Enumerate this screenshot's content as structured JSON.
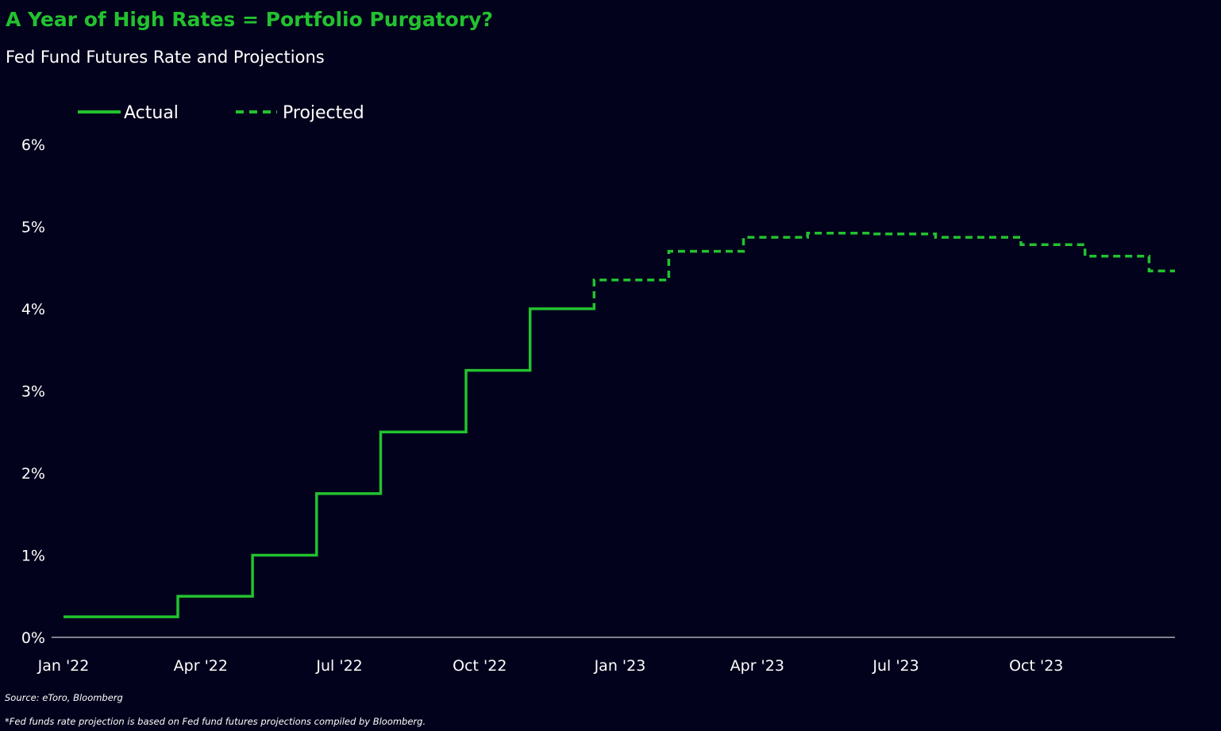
{
  "header": {
    "title": "A Year of High Rates = Portfolio Purgatory?",
    "subtitle": "Fed Fund Futures Rate and Projections"
  },
  "footer": {
    "source": "Source: eToro, Bloomberg",
    "note": "*Fed funds rate projection is based on Fed fund futures projections compiled by Bloomberg."
  },
  "colors": {
    "background": "#03021c",
    "accent": "#22c22f",
    "axis": "#ffffff"
  },
  "chart_data": {
    "type": "line",
    "title": "A Year of High Rates = Portfolio Purgatory?",
    "subtitle": "Fed Fund Futures Rate and Projections",
    "xlabel": "",
    "ylabel": "",
    "x_tick_labels": [
      "Jan '22",
      "Apr '22",
      "Jul '22",
      "Oct '22",
      "Jan '23",
      "Apr '23",
      "Jul '23",
      "Oct '23"
    ],
    "x_tick_dates": [
      "2022-01-01",
      "2022-04-01",
      "2022-07-01",
      "2022-10-01",
      "2023-01-01",
      "2023-04-01",
      "2023-07-01",
      "2023-10-01"
    ],
    "x_range": [
      "2022-01-01",
      "2023-12-31"
    ],
    "y_tick_labels": [
      "0%",
      "1%",
      "2%",
      "3%",
      "4%",
      "5%",
      "6%"
    ],
    "y_ticks": [
      0,
      1,
      2,
      3,
      4,
      5,
      6
    ],
    "ylim": [
      0,
      6
    ],
    "grid": false,
    "legend_position": "top-left",
    "series": [
      {
        "name": "Actual",
        "style": "solid",
        "step": true,
        "points": [
          {
            "date": "2022-01-01",
            "rate": 0.25
          },
          {
            "date": "2022-03-17",
            "rate": 0.5
          },
          {
            "date": "2022-05-05",
            "rate": 1.0
          },
          {
            "date": "2022-06-16",
            "rate": 1.75
          },
          {
            "date": "2022-07-28",
            "rate": 2.5
          },
          {
            "date": "2022-09-22",
            "rate": 3.25
          },
          {
            "date": "2022-11-03",
            "rate": 4.0
          },
          {
            "date": "2022-12-14",
            "rate": 4.0
          }
        ]
      },
      {
        "name": "Projected",
        "style": "dashed",
        "step": true,
        "points": [
          {
            "date": "2022-12-14",
            "rate": 4.0
          },
          {
            "date": "2022-12-15",
            "rate": 4.35
          },
          {
            "date": "2023-02-02",
            "rate": 4.7
          },
          {
            "date": "2023-03-23",
            "rate": 4.87
          },
          {
            "date": "2023-05-04",
            "rate": 4.92
          },
          {
            "date": "2023-06-15",
            "rate": 4.91
          },
          {
            "date": "2023-07-27",
            "rate": 4.87
          },
          {
            "date": "2023-09-21",
            "rate": 4.78
          },
          {
            "date": "2023-11-02",
            "rate": 4.64
          },
          {
            "date": "2023-12-14",
            "rate": 4.46
          },
          {
            "date": "2023-12-31",
            "rate": 4.46
          }
        ]
      }
    ]
  }
}
